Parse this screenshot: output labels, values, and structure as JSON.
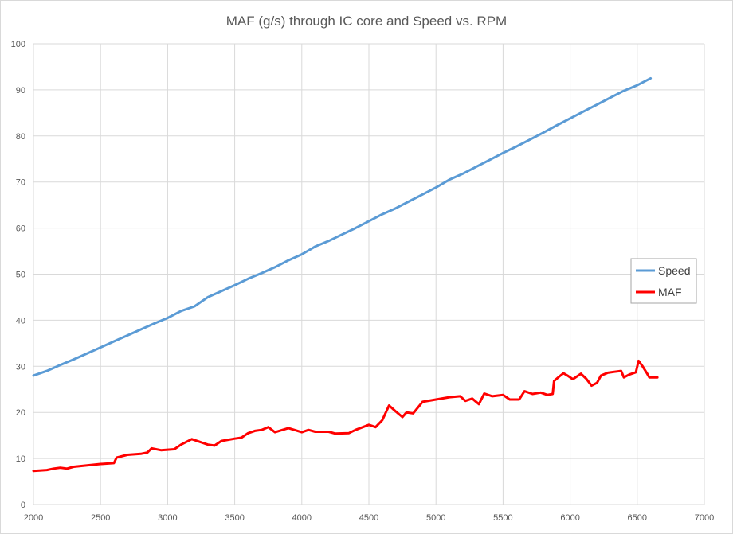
{
  "chart_data": {
    "type": "line",
    "title": "MAF (g/s) through IC core and Speed vs. RPM",
    "xlabel": "",
    "ylabel": "",
    "xlim": [
      2000,
      7000
    ],
    "ylim": [
      0,
      100
    ],
    "x_ticks": [
      2000,
      2500,
      3000,
      3500,
      4000,
      4500,
      5000,
      5500,
      6000,
      6500,
      7000
    ],
    "y_ticks": [
      0,
      10,
      20,
      30,
      40,
      50,
      60,
      70,
      80,
      90,
      100
    ],
    "grid": true,
    "legend_position": "right",
    "series": [
      {
        "name": "Speed",
        "color": "#5b9bd5",
        "points": [
          [
            2000,
            28
          ],
          [
            2100,
            29
          ],
          [
            2200,
            30.3
          ],
          [
            2300,
            31.5
          ],
          [
            2400,
            32.8
          ],
          [
            2500,
            34.1
          ],
          [
            2600,
            35.4
          ],
          [
            2700,
            36.7
          ],
          [
            2800,
            38
          ],
          [
            2900,
            39.3
          ],
          [
            3000,
            40.5
          ],
          [
            3100,
            42
          ],
          [
            3200,
            43
          ],
          [
            3300,
            45
          ],
          [
            3400,
            46.3
          ],
          [
            3500,
            47.6
          ],
          [
            3600,
            49
          ],
          [
            3700,
            50.2
          ],
          [
            3800,
            51.5
          ],
          [
            3900,
            53
          ],
          [
            4000,
            54.3
          ],
          [
            4100,
            56
          ],
          [
            4200,
            57.2
          ],
          [
            4300,
            58.6
          ],
          [
            4400,
            60
          ],
          [
            4500,
            61.5
          ],
          [
            4600,
            63
          ],
          [
            4700,
            64.3
          ],
          [
            4800,
            65.8
          ],
          [
            4900,
            67.3
          ],
          [
            5000,
            68.8
          ],
          [
            5100,
            70.5
          ],
          [
            5200,
            71.8
          ],
          [
            5300,
            73.3
          ],
          [
            5400,
            74.8
          ],
          [
            5500,
            76.3
          ],
          [
            5600,
            77.7
          ],
          [
            5700,
            79.2
          ],
          [
            5800,
            80.7
          ],
          [
            5900,
            82.3
          ],
          [
            6000,
            83.8
          ],
          [
            6100,
            85.3
          ],
          [
            6200,
            86.8
          ],
          [
            6300,
            88.3
          ],
          [
            6400,
            89.8
          ],
          [
            6500,
            91
          ],
          [
            6600,
            92.5
          ]
        ]
      },
      {
        "name": "MAF",
        "color": "#ff0000",
        "points": [
          [
            2000,
            7.3
          ],
          [
            2100,
            7.5
          ],
          [
            2150,
            7.8
          ],
          [
            2200,
            8
          ],
          [
            2250,
            7.8
          ],
          [
            2300,
            8.2
          ],
          [
            2400,
            8.5
          ],
          [
            2500,
            8.8
          ],
          [
            2600,
            9
          ],
          [
            2620,
            10.2
          ],
          [
            2700,
            10.8
          ],
          [
            2800,
            11
          ],
          [
            2850,
            11.3
          ],
          [
            2880,
            12.2
          ],
          [
            2950,
            11.8
          ],
          [
            3050,
            12
          ],
          [
            3100,
            13
          ],
          [
            3180,
            14.2
          ],
          [
            3250,
            13.5
          ],
          [
            3300,
            13
          ],
          [
            3350,
            12.8
          ],
          [
            3400,
            13.8
          ],
          [
            3500,
            14.3
          ],
          [
            3550,
            14.5
          ],
          [
            3600,
            15.5
          ],
          [
            3650,
            16
          ],
          [
            3700,
            16.2
          ],
          [
            3750,
            16.8
          ],
          [
            3800,
            15.7
          ],
          [
            3900,
            16.6
          ],
          [
            4000,
            15.7
          ],
          [
            4050,
            16.2
          ],
          [
            4100,
            15.8
          ],
          [
            4200,
            15.8
          ],
          [
            4250,
            15.4
          ],
          [
            4350,
            15.5
          ],
          [
            4400,
            16.2
          ],
          [
            4500,
            17.3
          ],
          [
            4550,
            16.8
          ],
          [
            4600,
            18.3
          ],
          [
            4650,
            21.5
          ],
          [
            4700,
            20.2
          ],
          [
            4750,
            19
          ],
          [
            4780,
            20
          ],
          [
            4830,
            19.8
          ],
          [
            4900,
            22.3
          ],
          [
            5000,
            22.8
          ],
          [
            5100,
            23.3
          ],
          [
            5180,
            23.5
          ],
          [
            5220,
            22.5
          ],
          [
            5270,
            23
          ],
          [
            5320,
            21.8
          ],
          [
            5360,
            24.1
          ],
          [
            5420,
            23.5
          ],
          [
            5500,
            23.8
          ],
          [
            5550,
            22.8
          ],
          [
            5620,
            22.8
          ],
          [
            5660,
            24.6
          ],
          [
            5720,
            24
          ],
          [
            5780,
            24.3
          ],
          [
            5830,
            23.8
          ],
          [
            5870,
            24
          ],
          [
            5880,
            26.8
          ],
          [
            5920,
            27.8
          ],
          [
            5950,
            28.5
          ],
          [
            5980,
            28
          ],
          [
            6020,
            27.2
          ],
          [
            6080,
            28.4
          ],
          [
            6120,
            27.3
          ],
          [
            6160,
            25.8
          ],
          [
            6200,
            26.4
          ],
          [
            6230,
            28
          ],
          [
            6280,
            28.6
          ],
          [
            6330,
            28.8
          ],
          [
            6380,
            29
          ],
          [
            6400,
            27.6
          ],
          [
            6440,
            28.2
          ],
          [
            6490,
            28.7
          ],
          [
            6510,
            31.2
          ],
          [
            6540,
            30
          ],
          [
            6570,
            28.6
          ],
          [
            6590,
            27.6
          ],
          [
            6650,
            27.6
          ]
        ]
      }
    ]
  }
}
